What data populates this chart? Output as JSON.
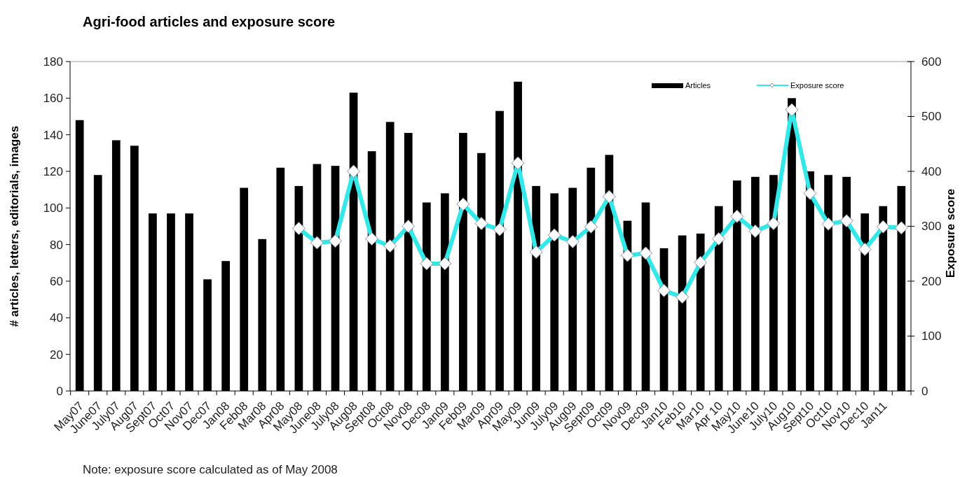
{
  "chart_data": {
    "type": "bar",
    "title": "Agri-food articles and exposure score",
    "ylabel": "# articles, letters, editorials, images",
    "y2label": "Exposure score",
    "annotations": [
      "Note: exposure score calculated as of May 2008"
    ],
    "categories": [
      "May07",
      "June07",
      "July07",
      "Aug07",
      "Sept07",
      "Oct07",
      "Nov07",
      "Dec07",
      "Jan08",
      "Feb08",
      "Mar08",
      "Apr08",
      "May08",
      "June08",
      "July08",
      "Aug08",
      "Sept08",
      "Oct08",
      "Nov08",
      "Dec08",
      "Jan09",
      "Feb09",
      "Mar09",
      "Apr09",
      "May09",
      "Jun09",
      "July09",
      "Aug09",
      "Sept09",
      "Oct09",
      "Nov09",
      "Dec09",
      "Jan10",
      "Feb10",
      "Mar10",
      "Apr 10",
      "May10",
      "June10",
      "July10",
      "Aug10",
      "Sept10",
      "Oct10",
      "Nov10",
      "Dec10",
      "Jan11",
      null
    ],
    "series": [
      {
        "name": "Articles",
        "color": "#000000",
        "values": [
          148,
          118,
          137,
          134,
          97,
          97,
          97,
          61,
          71,
          111,
          83,
          122,
          112,
          124,
          123,
          163,
          131,
          147,
          141,
          103,
          108,
          141,
          130,
          153,
          169,
          112,
          108,
          111,
          122,
          129,
          93,
          103,
          78,
          85,
          86,
          101,
          115,
          117,
          118,
          160,
          120,
          118,
          117,
          97,
          101,
          112
        ]
      },
      {
        "name": "Exposure score",
        "type": "line",
        "axis": "y2",
        "color": "#33e8e8",
        "values": [
          null,
          null,
          null,
          null,
          null,
          null,
          null,
          null,
          null,
          null,
          null,
          null,
          296,
          270,
          273,
          400,
          277,
          264,
          300,
          232,
          232,
          340,
          305,
          294,
          415,
          253,
          284,
          272,
          299,
          354,
          247,
          251,
          183,
          171,
          234,
          277,
          318,
          291,
          305,
          512,
          360,
          304,
          310,
          258,
          299,
          297
        ]
      }
    ],
    "ylim": [
      0,
      180
    ],
    "yticks": [
      0,
      20,
      40,
      60,
      80,
      100,
      120,
      140,
      160,
      180
    ],
    "y2lim": [
      0,
      600
    ],
    "y2ticks": [
      0,
      100,
      200,
      300,
      400,
      500,
      600
    ],
    "grid": false,
    "legend": "top right",
    "marker": "diamond",
    "line_style": "solid"
  }
}
